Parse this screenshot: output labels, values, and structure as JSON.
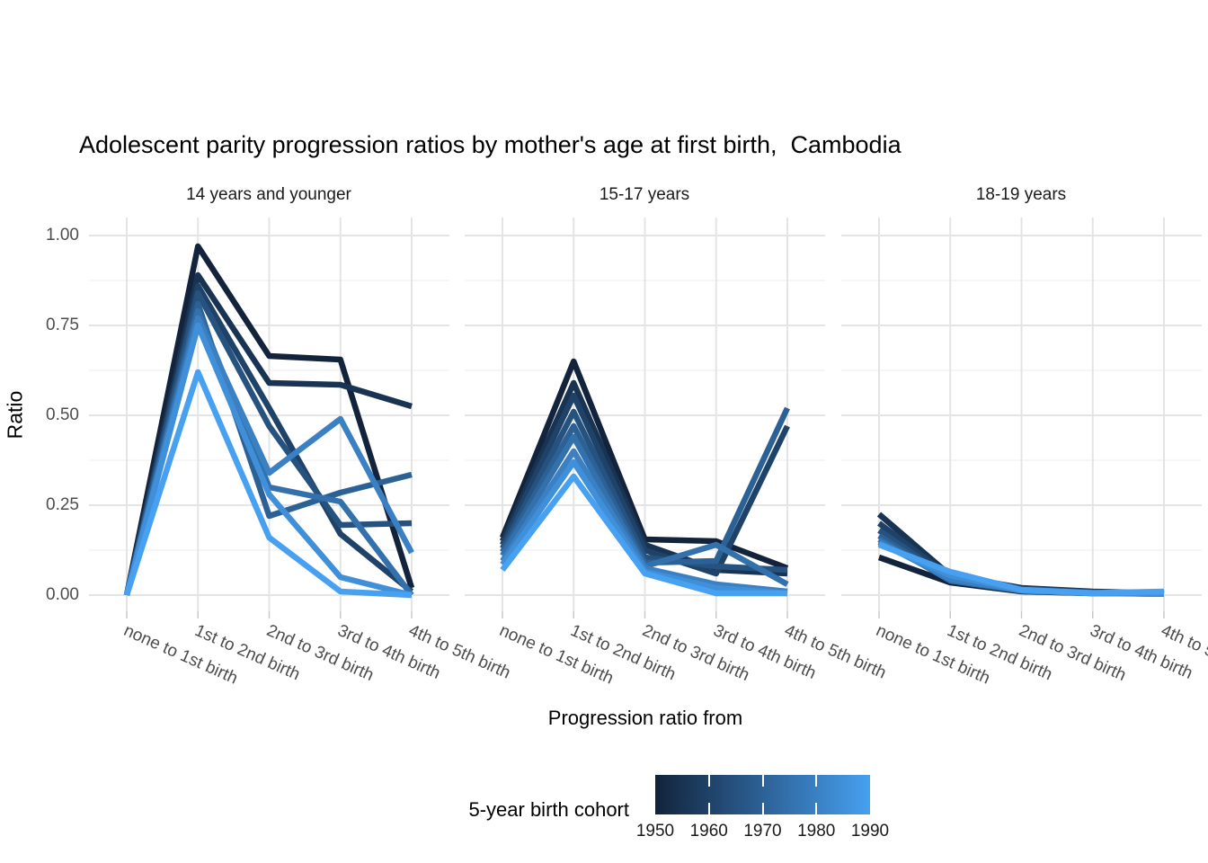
{
  "chart_data": {
    "type": "line",
    "title": "Adolescent parity progression ratios by mother's age at first birth,  Cambodia",
    "xlabel": "Progression ratio from",
    "ylabel": "Ratio",
    "ylim": [
      0,
      1
    ],
    "grid": "on",
    "y_tick_labels": [
      "1.00",
      "0.75",
      "0.50",
      "0.25",
      "0.00"
    ],
    "y_tick_values": [
      1.0,
      0.75,
      0.5,
      0.25,
      0.0
    ],
    "y_minor_tick_values": [
      0.875,
      0.625,
      0.375,
      0.125
    ],
    "categories": [
      "none to 1st birth",
      "1st to 2nd birth",
      "2nd to 3rd birth",
      "3rd to 4th birth",
      "4th to 5th birth"
    ],
    "cohorts": [
      {
        "name": "1950",
        "color": "#12233B"
      },
      {
        "name": "1955",
        "color": "#193352"
      },
      {
        "name": "1960",
        "color": "#1F4268"
      },
      {
        "name": "1965",
        "color": "#26527F"
      },
      {
        "name": "1970",
        "color": "#2C6195"
      },
      {
        "name": "1975",
        "color": "#3371AC"
      },
      {
        "name": "1980",
        "color": "#3A80C3"
      },
      {
        "name": "1985",
        "color": "#4090D9"
      },
      {
        "name": "1990",
        "color": "#47A0F0"
      }
    ],
    "facets": [
      {
        "label": "14 years and younger",
        "series": [
          {
            "name": "1950",
            "values": [
              0.0,
              0.97,
              0.665,
              0.655,
              0.02
            ]
          },
          {
            "name": "1955",
            "values": [
              0.0,
              0.89,
              0.59,
              0.585,
              0.525
            ]
          },
          {
            "name": "1960",
            "values": [
              0.0,
              0.86,
              0.52,
              0.17,
              0.01
            ]
          },
          {
            "name": "1965",
            "values": [
              0.0,
              0.84,
              0.47,
              0.195,
              0.2
            ]
          },
          {
            "name": "1970",
            "values": [
              0.0,
              0.81,
              0.22,
              0.285,
              0.335
            ]
          },
          {
            "name": "1975",
            "values": [
              0.0,
              0.79,
              0.3,
              0.26,
              0.0
            ]
          },
          {
            "name": "1980",
            "values": [
              0.0,
              0.77,
              0.34,
              0.49,
              0.118
            ]
          },
          {
            "name": "1985",
            "values": [
              0.0,
              0.75,
              0.28,
              0.05,
              0.0
            ]
          },
          {
            "name": "1990",
            "values": [
              0.0,
              0.62,
              0.16,
              0.01,
              0.0
            ]
          }
        ]
      },
      {
        "label": "15-17 years",
        "series": [
          {
            "name": "1950",
            "values": [
              0.16,
              0.65,
              0.155,
              0.15,
              0.075
            ]
          },
          {
            "name": "1955",
            "values": [
              0.15,
              0.59,
              0.14,
              0.07,
              0.06
            ]
          },
          {
            "name": "1960",
            "values": [
              0.14,
              0.555,
              0.125,
              0.06,
              0.47
            ]
          },
          {
            "name": "1965",
            "values": [
              0.13,
              0.51,
              0.105,
              0.08,
              0.07
            ]
          },
          {
            "name": "1970",
            "values": [
              0.12,
              0.47,
              0.09,
              0.095,
              0.52
            ]
          },
          {
            "name": "1975",
            "values": [
              0.11,
              0.44,
              0.08,
              0.14,
              0.03
            ]
          },
          {
            "name": "1980",
            "values": [
              0.095,
              0.4,
              0.075,
              0.03,
              0.01
            ]
          },
          {
            "name": "1985",
            "values": [
              0.085,
              0.37,
              0.065,
              0.02,
              0.005
            ]
          },
          {
            "name": "1990",
            "values": [
              0.07,
              0.33,
              0.06,
              0.005,
              0.005
            ]
          }
        ]
      },
      {
        "label": "18-19 years",
        "series": [
          {
            "name": "1950",
            "values": [
              0.105,
              0.035,
              0.01,
              0.005,
              0.005
            ]
          },
          {
            "name": "1955",
            "values": [
              0.225,
              0.055,
              0.02,
              0.01,
              0.005
            ]
          },
          {
            "name": "1960",
            "values": [
              0.2,
              0.05,
              0.018,
              0.008,
              0.004
            ]
          },
          {
            "name": "1965",
            "values": [
              0.18,
              0.045,
              0.015,
              0.007,
              0.004
            ]
          },
          {
            "name": "1970",
            "values": [
              0.165,
              0.042,
              0.013,
              0.006,
              0.003
            ]
          },
          {
            "name": "1975",
            "values": [
              0.155,
              0.04,
              0.012,
              0.006,
              0.003
            ]
          },
          {
            "name": "1980",
            "values": [
              0.148,
              0.045,
              0.012,
              0.005,
              0.003
            ]
          },
          {
            "name": "1985",
            "values": [
              0.143,
              0.055,
              0.013,
              0.005,
              0.004
            ]
          },
          {
            "name": "1990",
            "values": [
              0.14,
              0.065,
              0.015,
              0.006,
              0.01
            ]
          }
        ]
      }
    ],
    "legend": {
      "title": "5-year birth cohort",
      "tick_labels": [
        "1950",
        "1960",
        "1970",
        "1980",
        "1990"
      ],
      "position": "bottom",
      "gradient_start_color": "#12233B",
      "gradient_end_color": "#47A0F0"
    },
    "colors": {
      "grid_major": "#e4e4e4",
      "grid_minor": "#f0f0f0",
      "axis_tick": "#c9c9c9",
      "tick_text": "#4d4d4d"
    }
  }
}
